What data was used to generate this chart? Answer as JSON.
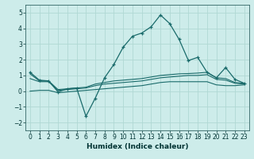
{
  "xlabel": "Humidex (Indice chaleur)",
  "background_color": "#cdecea",
  "grid_color": "#b0d8d4",
  "line_color": "#1a6b6b",
  "x": [
    0,
    1,
    2,
    3,
    4,
    5,
    6,
    7,
    8,
    9,
    10,
    11,
    12,
    13,
    14,
    15,
    16,
    17,
    18,
    19,
    20,
    21,
    22,
    23
  ],
  "y_main": [
    1.2,
    0.7,
    0.65,
    -0.05,
    0.15,
    0.2,
    -1.6,
    -0.45,
    0.85,
    1.7,
    2.8,
    3.5,
    3.7,
    4.1,
    4.85,
    4.3,
    3.3,
    1.95,
    2.15,
    1.2,
    0.85,
    1.5,
    0.75,
    0.5
  ],
  "y_line1": [
    1.1,
    0.65,
    0.65,
    0.1,
    0.15,
    0.2,
    0.25,
    0.45,
    0.55,
    0.65,
    0.7,
    0.75,
    0.8,
    0.9,
    1.0,
    1.05,
    1.1,
    1.12,
    1.15,
    1.2,
    0.85,
    0.8,
    0.55,
    0.5
  ],
  "y_line2": [
    0.8,
    0.6,
    0.6,
    0.05,
    0.1,
    0.15,
    0.2,
    0.35,
    0.45,
    0.5,
    0.55,
    0.6,
    0.65,
    0.75,
    0.85,
    0.9,
    0.95,
    1.0,
    1.0,
    1.05,
    0.75,
    0.7,
    0.5,
    0.45
  ],
  "y_line3": [
    0.0,
    0.05,
    0.05,
    -0.1,
    -0.05,
    0.0,
    0.05,
    0.1,
    0.15,
    0.2,
    0.25,
    0.3,
    0.35,
    0.45,
    0.55,
    0.6,
    0.6,
    0.6,
    0.6,
    0.6,
    0.4,
    0.35,
    0.35,
    0.4
  ],
  "ylim": [
    -2.5,
    5.5
  ],
  "xlim": [
    -0.5,
    23.5
  ],
  "yticks": [
    -2,
    -1,
    0,
    1,
    2,
    3,
    4,
    5
  ],
  "xticks": [
    0,
    1,
    2,
    3,
    4,
    5,
    6,
    7,
    8,
    9,
    10,
    11,
    12,
    13,
    14,
    15,
    16,
    17,
    18,
    19,
    20,
    21,
    22,
    23
  ]
}
